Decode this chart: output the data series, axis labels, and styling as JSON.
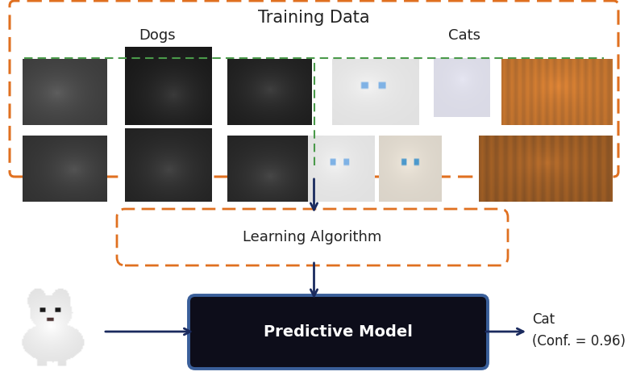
{
  "title": "Training Data",
  "dogs_label": "Dogs",
  "cats_label": "Cats",
  "algo_label": "Learning Algorithm",
  "model_label": "Predictive Model",
  "result_line1": "Cat",
  "result_line2": "(Conf. = 0.96)",
  "outer_box_color": "#E07020",
  "green_line_color": "#4A9A4A",
  "algo_box_color": "#E07020",
  "model_edge_color": "#3a5f9a",
  "model_face_color": "#0d0d1a",
  "model_text_color": "#ffffff",
  "arrow_color": "#1a2a5e",
  "bg_color": "#ffffff",
  "title_fontsize": 15,
  "label_fontsize": 13,
  "model_fontsize": 14,
  "result_fontsize": 12,
  "fig_width": 7.79,
  "fig_height": 4.71,
  "dpi": 100
}
